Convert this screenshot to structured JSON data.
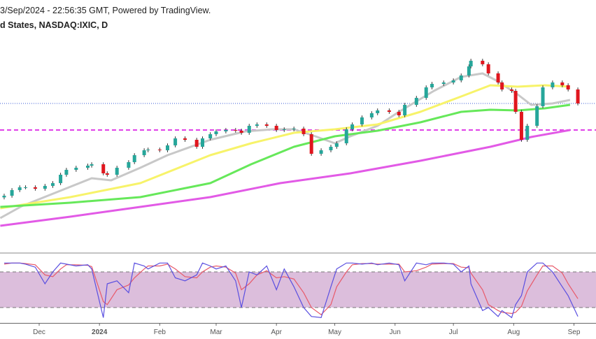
{
  "header": {
    "line1": "3/Sep/2024 - 22:56:35 GMT, Powered by TradingView.",
    "line2": "d States, NASDAQ:IXIC, D"
  },
  "colors": {
    "up": "#26a69a",
    "down": "#e0161e",
    "sma20": "#c8c8c8",
    "sma50": "#f7f36a",
    "sma100": "#66e85a",
    "sma200": "#e25ae6",
    "support_line": "#e040e8",
    "last_price_line": "#3b5bd6",
    "stoch_k": "#5a4fe0",
    "stoch_d": "#e85a6a",
    "stoch_band": "#dcbedc"
  },
  "chart_data": [
    {
      "type": "candlestick",
      "symbol": "NASDAQ:IXIC",
      "interval": "D",
      "ylim": [
        11878,
        20806
      ],
      "grid": false,
      "x_ticks": [
        {
          "label": "Dec",
          "date": "2023-12-01"
        },
        {
          "label": "2024",
          "date": "2024-01-01"
        },
        {
          "label": "Feb",
          "date": "2024-02-01"
        },
        {
          "label": "Mar",
          "date": "2024-03-01"
        },
        {
          "label": "Apr",
          "date": "2024-04-01"
        },
        {
          "label": "May",
          "date": "2024-05-01"
        },
        {
          "label": "Jun",
          "date": "2024-06-01"
        },
        {
          "label": "Jul",
          "date": "2024-07-01"
        },
        {
          "label": "Aug",
          "date": "2024-08-01"
        },
        {
          "label": "Sep",
          "date": "2024-09-01"
        }
      ],
      "closes": [
        [
          "2023-11-13",
          13862
        ],
        [
          "2023-11-17",
          14061
        ],
        [
          "2023-11-21",
          14160
        ],
        [
          "2023-11-24",
          14160
        ],
        [
          "2023-11-29",
          14110
        ],
        [
          "2023-12-04",
          14210
        ],
        [
          "2023-12-08",
          14309
        ],
        [
          "2023-12-12",
          14606
        ],
        [
          "2023-12-15",
          14780
        ],
        [
          "2023-12-20",
          14854
        ],
        [
          "2023-12-26",
          14929
        ],
        [
          "2023-12-28",
          14978
        ],
        [
          "2024-01-03",
          14656
        ],
        [
          "2024-01-05",
          14606
        ],
        [
          "2024-01-10",
          14854
        ],
        [
          "2024-01-16",
          15053
        ],
        [
          "2024-01-19",
          15300
        ],
        [
          "2024-01-24",
          15474
        ],
        [
          "2024-01-26",
          15499
        ],
        [
          "2024-02-01",
          15474
        ],
        [
          "2024-02-05",
          15648
        ],
        [
          "2024-02-09",
          15896
        ],
        [
          "2024-02-14",
          15846
        ],
        [
          "2024-02-20",
          15598
        ],
        [
          "2024-02-23",
          15896
        ],
        [
          "2024-02-27",
          16045
        ],
        [
          "2024-03-01",
          16144
        ],
        [
          "2024-03-06",
          16194
        ],
        [
          "2024-03-11",
          16169
        ],
        [
          "2024-03-14",
          16094
        ],
        [
          "2024-03-18",
          16342
        ],
        [
          "2024-03-22",
          16392
        ],
        [
          "2024-03-27",
          16342
        ],
        [
          "2024-04-01",
          16194
        ],
        [
          "2024-04-05",
          16218
        ],
        [
          "2024-04-10",
          16243
        ],
        [
          "2024-04-15",
          16045
        ],
        [
          "2024-04-19",
          15350
        ],
        [
          "2024-04-24",
          15474
        ],
        [
          "2024-04-29",
          15598
        ],
        [
          "2024-05-02",
          15722
        ],
        [
          "2024-05-07",
          16218
        ],
        [
          "2024-05-10",
          16392
        ],
        [
          "2024-05-15",
          16640
        ],
        [
          "2024-05-20",
          16789
        ],
        [
          "2024-05-23",
          16888
        ],
        [
          "2024-05-29",
          16838
        ],
        [
          "2024-06-03",
          16714
        ],
        [
          "2024-06-06",
          17086
        ],
        [
          "2024-06-12",
          17334
        ],
        [
          "2024-06-17",
          17706
        ],
        [
          "2024-06-20",
          17830
        ],
        [
          "2024-06-26",
          17880
        ],
        [
          "2024-07-01",
          17954
        ],
        [
          "2024-07-05",
          18128
        ],
        [
          "2024-07-09",
          18450
        ],
        [
          "2024-07-10",
          18650
        ],
        [
          "2024-07-16",
          18526
        ],
        [
          "2024-07-19",
          18202
        ],
        [
          "2024-07-24",
          17880
        ],
        [
          "2024-07-26",
          17632
        ],
        [
          "2024-07-31",
          17582
        ],
        [
          "2024-08-02",
          16838
        ],
        [
          "2024-08-05",
          15846
        ],
        [
          "2024-08-08",
          16342
        ],
        [
          "2024-08-13",
          17037
        ],
        [
          "2024-08-16",
          17706
        ],
        [
          "2024-08-21",
          17880
        ],
        [
          "2024-08-26",
          17781
        ],
        [
          "2024-08-29",
          17632
        ],
        [
          "2024-09-03",
          17136
        ]
      ],
      "last_price": 17136,
      "support_level": 16194,
      "moving_averages": [
        {
          "period": 20,
          "color_key": "sma20",
          "points": [
            [
              "2023-11-11",
              13069
            ],
            [
              "2023-11-22",
              13490
            ],
            [
              "2023-12-10",
              13986
            ],
            [
              "2023-12-28",
              14482
            ],
            [
              "2024-01-07",
              14408
            ],
            [
              "2024-01-22",
              14854
            ],
            [
              "2024-02-05",
              15301
            ],
            [
              "2024-02-27",
              15846
            ],
            [
              "2024-03-16",
              16144
            ],
            [
              "2024-03-30",
              16218
            ],
            [
              "2024-04-10",
              16218
            ],
            [
              "2024-04-21",
              15970
            ],
            [
              "2024-05-01",
              15722
            ],
            [
              "2024-05-09",
              15970
            ],
            [
              "2024-05-23",
              16342
            ],
            [
              "2024-06-03",
              16838
            ],
            [
              "2024-06-21",
              17582
            ],
            [
              "2024-07-05",
              18078
            ],
            [
              "2024-07-16",
              18202
            ],
            [
              "2024-07-23",
              17954
            ],
            [
              "2024-08-03",
              17458
            ],
            [
              "2024-08-10",
              17086
            ],
            [
              "2024-08-21",
              17136
            ],
            [
              "2024-08-30",
              17260
            ]
          ]
        },
        {
          "period": 50,
          "color_key": "sma50",
          "points": [
            [
              "2023-11-11",
              13416
            ],
            [
              "2023-12-17",
              13813
            ],
            [
              "2024-01-22",
              14309
            ],
            [
              "2024-02-27",
              15301
            ],
            [
              "2024-03-19",
              15722
            ],
            [
              "2024-04-10",
              16094
            ],
            [
              "2024-05-01",
              16218
            ],
            [
              "2024-05-23",
              16392
            ],
            [
              "2024-06-14",
              16838
            ],
            [
              "2024-07-05",
              17384
            ],
            [
              "2024-07-20",
              17781
            ],
            [
              "2024-08-03",
              17731
            ],
            [
              "2024-08-17",
              17781
            ],
            [
              "2024-08-30",
              17731
            ]
          ]
        },
        {
          "period": 100,
          "color_key": "sma100",
          "points": [
            [
              "2023-11-11",
              13466
            ],
            [
              "2023-12-17",
              13614
            ],
            [
              "2024-01-22",
              13813
            ],
            [
              "2024-02-27",
              14309
            ],
            [
              "2024-03-19",
              14978
            ],
            [
              "2024-04-10",
              15598
            ],
            [
              "2024-05-01",
              15970
            ],
            [
              "2024-05-23",
              16169
            ],
            [
              "2024-06-14",
              16466
            ],
            [
              "2024-07-05",
              16838
            ],
            [
              "2024-07-20",
              16913
            ],
            [
              "2024-08-03",
              16888
            ],
            [
              "2024-08-17",
              16962
            ],
            [
              "2024-08-30",
              17086
            ]
          ]
        },
        {
          "period": 200,
          "color_key": "sma200",
          "points": [
            [
              "2023-11-11",
              12796
            ],
            [
              "2023-12-17",
              13118
            ],
            [
              "2024-01-22",
              13466
            ],
            [
              "2024-02-27",
              13813
            ],
            [
              "2024-04-03",
              14309
            ],
            [
              "2024-05-09",
              14656
            ],
            [
              "2024-06-14",
              15102
            ],
            [
              "2024-07-20",
              15598
            ],
            [
              "2024-08-10",
              15946
            ],
            [
              "2024-08-30",
              16194
            ]
          ]
        }
      ]
    },
    {
      "type": "line",
      "indicator": "Stochastic",
      "ylim": [
        0,
        100
      ],
      "band": [
        20,
        80
      ],
      "k": [
        95,
        95,
        95,
        93,
        88,
        60,
        80,
        95,
        93,
        90,
        92,
        85,
        3,
        60,
        65,
        45,
        95,
        90,
        85,
        95,
        95,
        70,
        65,
        75,
        95,
        90,
        85,
        90,
        65,
        20,
        80,
        75,
        90,
        50,
        85,
        55,
        20,
        5,
        3,
        55,
        85,
        95,
        95,
        93,
        95,
        92,
        95,
        92,
        65,
        95,
        92,
        95,
        95,
        93,
        80,
        90,
        60,
        15,
        20,
        5,
        15,
        3,
        25,
        40,
        80,
        95,
        95,
        80,
        55,
        40,
        5
      ],
      "d": [
        93,
        95,
        95,
        94,
        92,
        75,
        72,
        85,
        92,
        92,
        91,
        89,
        30,
        25,
        50,
        58,
        70,
        85,
        90,
        90,
        93,
        85,
        72,
        70,
        80,
        88,
        90,
        88,
        78,
        50,
        60,
        75,
        82,
        70,
        72,
        68,
        45,
        20,
        8,
        25,
        55,
        80,
        92,
        94,
        94,
        93,
        93,
        93,
        80,
        82,
        88,
        93,
        94,
        94,
        88,
        87,
        78,
        50,
        25,
        15,
        12,
        10,
        12,
        22,
        48,
        75,
        90,
        90,
        78,
        60,
        35
      ]
    }
  ]
}
